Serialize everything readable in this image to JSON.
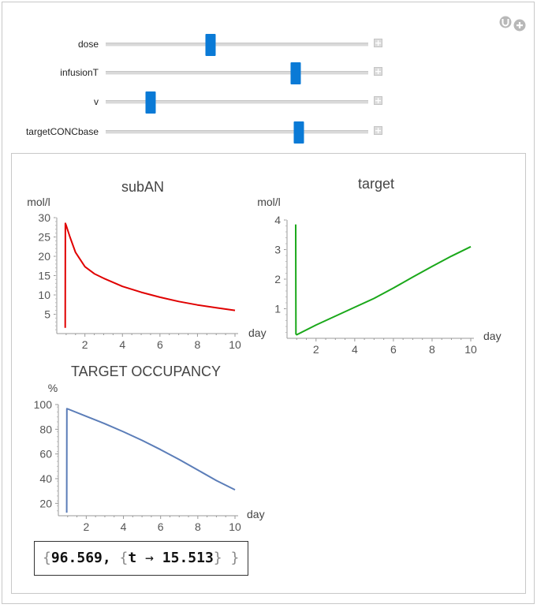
{
  "controls": [
    {
      "label": "dose",
      "value": 0.4
    },
    {
      "label": "infusionT",
      "value": 0.725
    },
    {
      "label": "v",
      "value": 0.17
    },
    {
      "label": "targetCONCbase",
      "value": 0.735
    }
  ],
  "icons": {
    "top": [
      "update-icon",
      "plus-circle-icon"
    ],
    "control_plus": "plus-icon"
  },
  "result": {
    "open": "{",
    "value": "96.569,",
    "inner_open": "{",
    "var": "t",
    "arrow": "→",
    "time": "15.513",
    "inner_close": "}",
    "close": "}"
  },
  "chart_data": [
    {
      "type": "line",
      "title": "subAN",
      "ylabel": "mol/l",
      "xlabel": "day",
      "xlim": [
        0.5,
        10
      ],
      "ylim": [
        0,
        30
      ],
      "xticks": [
        2,
        4,
        6,
        8,
        10
      ],
      "yticks": [
        5,
        10,
        15,
        20,
        25,
        30
      ],
      "color": "#e00000",
      "x": [
        0.95,
        0.96,
        1.0,
        1.2,
        1.5,
        2.0,
        2.5,
        3.0,
        4.0,
        5.0,
        6.0,
        7.0,
        8.0,
        9.0,
        10.0
      ],
      "y": [
        1.5,
        28.5,
        28.0,
        25.0,
        21.0,
        17.3,
        15.5,
        14.3,
        12.2,
        10.7,
        9.4,
        8.3,
        7.4,
        6.7,
        6.0
      ]
    },
    {
      "type": "line",
      "title": "target",
      "ylabel": "mol/l",
      "xlabel": "day",
      "xlim": [
        0.5,
        10
      ],
      "ylim": [
        0,
        4
      ],
      "xticks": [
        2,
        4,
        6,
        8,
        10
      ],
      "yticks": [
        1,
        2,
        3,
        4
      ],
      "color": "#1aa81a",
      "x": [
        0.95,
        0.96,
        1.0,
        2.0,
        3.0,
        4.0,
        5.0,
        6.0,
        7.0,
        8.0,
        9.0,
        10.0
      ],
      "y": [
        3.85,
        0.15,
        0.12,
        0.45,
        0.75,
        1.05,
        1.35,
        1.7,
        2.07,
        2.43,
        2.78,
        3.1
      ]
    },
    {
      "type": "line",
      "title": "TARGET OCCUPANCY",
      "ylabel": "%",
      "xlabel": "day",
      "xlim": [
        0.5,
        10
      ],
      "ylim": [
        10,
        100
      ],
      "xticks": [
        2,
        4,
        6,
        8,
        10
      ],
      "yticks": [
        20,
        40,
        60,
        80,
        100
      ],
      "color": "#5b7db8",
      "x": [
        0.95,
        0.96,
        1.0,
        2.0,
        3.0,
        4.0,
        5.0,
        6.0,
        7.0,
        8.0,
        9.0,
        10.0
      ],
      "y": [
        12.5,
        96.6,
        96.5,
        90.5,
        84.5,
        78.0,
        71.0,
        63.5,
        55.5,
        47.0,
        38.5,
        31.0
      ]
    }
  ]
}
